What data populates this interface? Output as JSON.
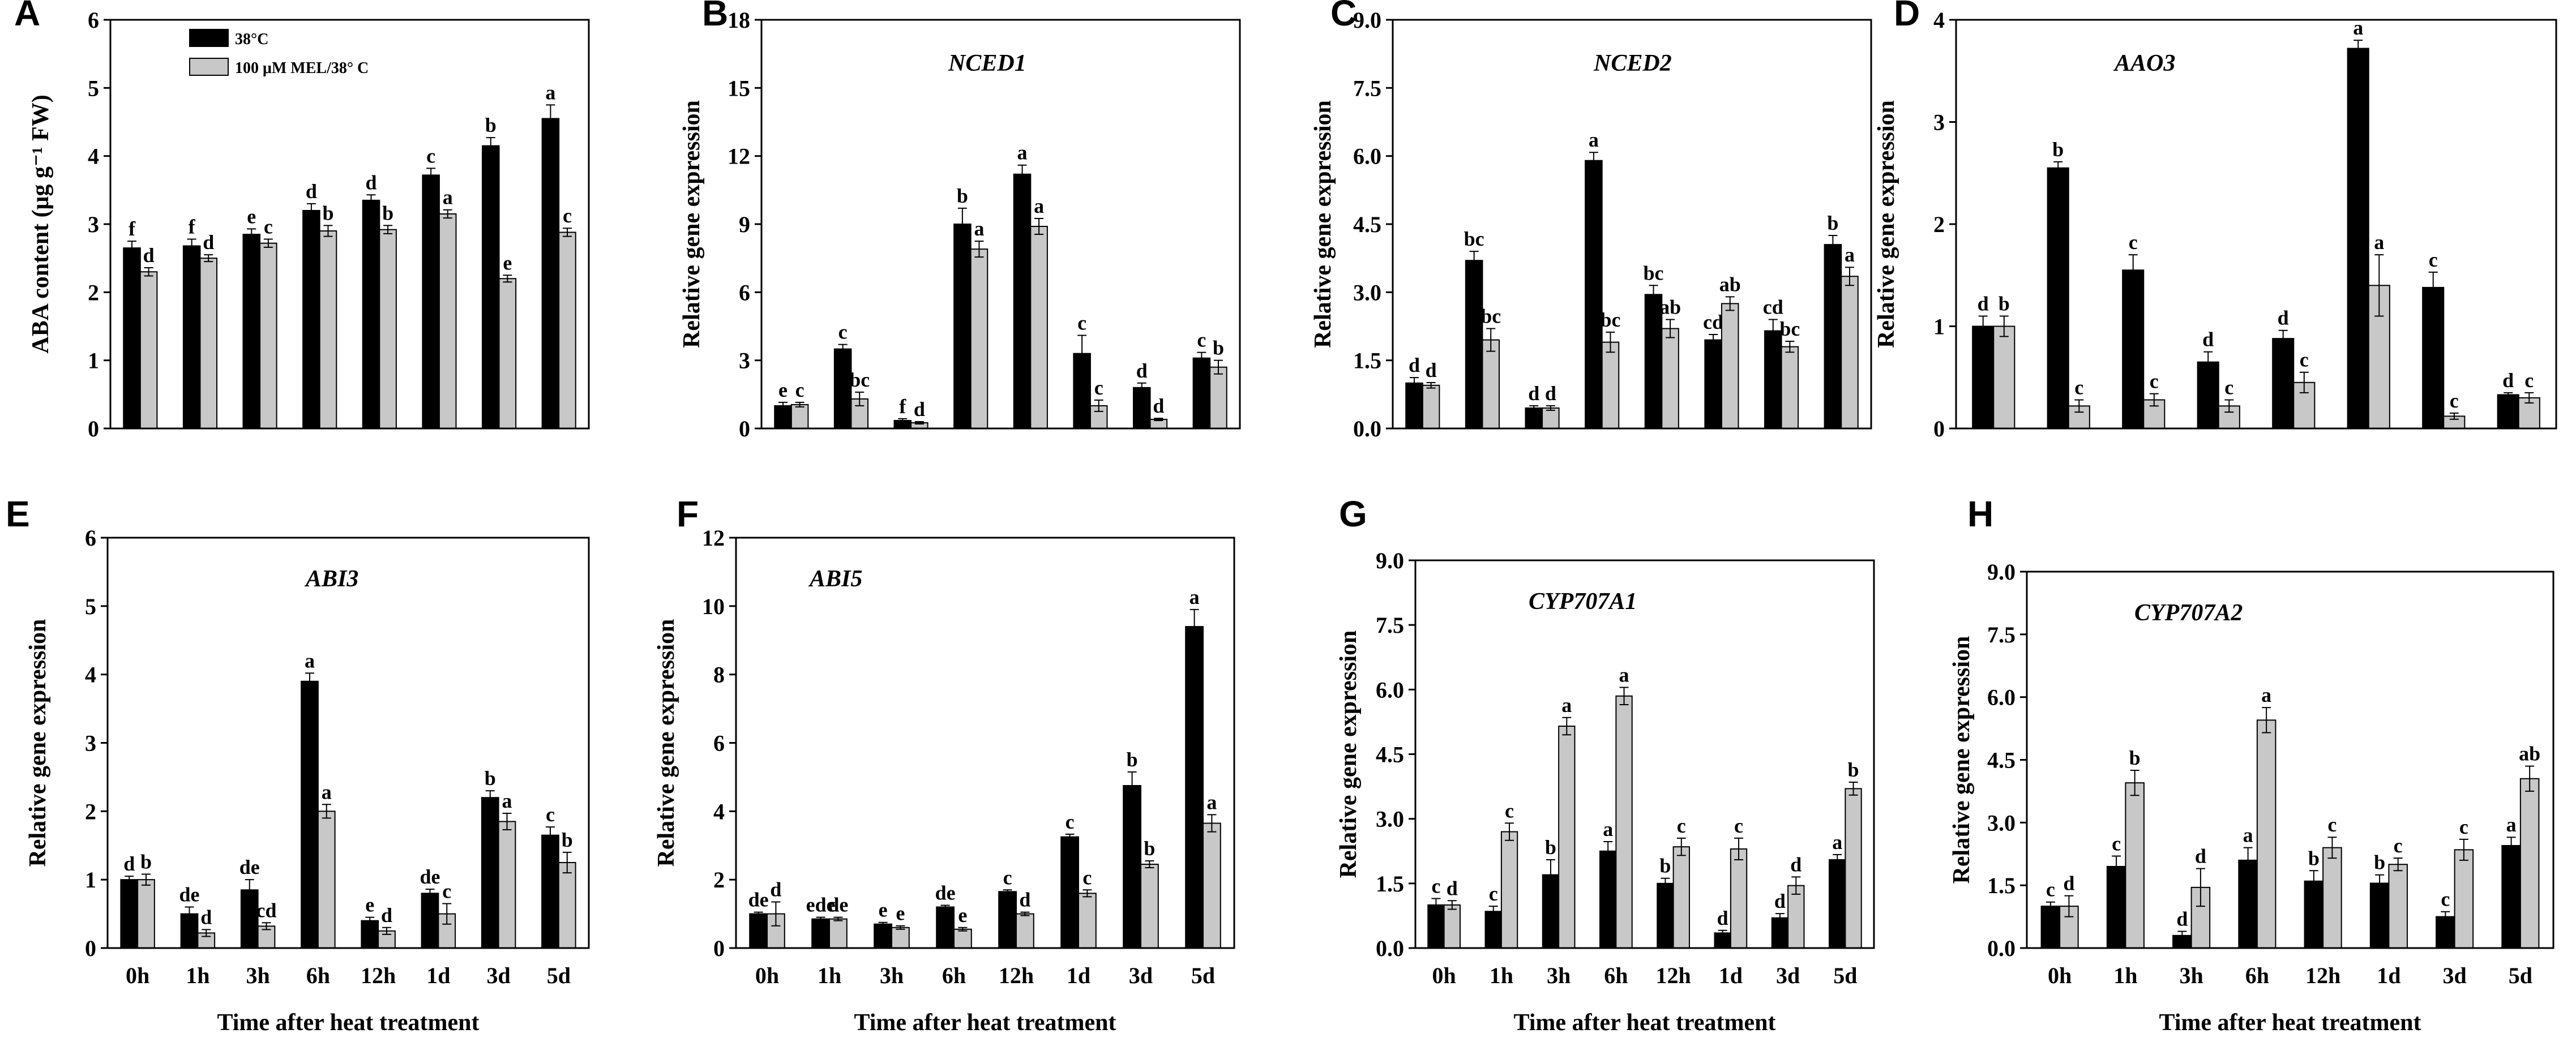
{
  "figure": {
    "legend": {
      "series1": "38°C",
      "series2": "100 μM MEL/38° C"
    },
    "colors": {
      "series1": "#000000",
      "series2": "#c8c8c8"
    }
  },
  "chart_data": [
    {
      "type": "bar",
      "panel": "A",
      "gene": "",
      "ylabel": "ABA content (μg g⁻¹ FW)",
      "xlabel": "",
      "categories": [
        "0h",
        "1h",
        "3h",
        "6h",
        "12h",
        "1d",
        "3d",
        "5d"
      ],
      "ylim": [
        0,
        6
      ],
      "yticks": [
        "0",
        "1",
        "2",
        "3",
        "4",
        "5",
        "6"
      ],
      "show_xticks": false,
      "show_legend": true,
      "series": [
        {
          "name": "38°C",
          "values": [
            2.65,
            2.68,
            2.85,
            3.2,
            3.35,
            3.72,
            4.15,
            4.55
          ],
          "errors": [
            0.1,
            0.1,
            0.08,
            0.1,
            0.08,
            0.1,
            0.12,
            0.2
          ],
          "labels": [
            "f",
            "f",
            "e",
            "d",
            "d",
            "c",
            "b",
            "a"
          ]
        },
        {
          "name": "100 μM MEL/38° C",
          "values": [
            2.3,
            2.5,
            2.72,
            2.9,
            2.92,
            3.15,
            2.2,
            2.88
          ],
          "errors": [
            0.06,
            0.05,
            0.06,
            0.08,
            0.06,
            0.06,
            0.05,
            0.06
          ],
          "labels": [
            "d",
            "d",
            "c",
            "b",
            "b",
            "a",
            "e",
            "c"
          ]
        }
      ]
    },
    {
      "type": "bar",
      "panel": "B",
      "gene": "NCED1",
      "ylabel": "Relative gene expression",
      "xlabel": "",
      "categories": [
        "0h",
        "1h",
        "3h",
        "6h",
        "12h",
        "1d",
        "3d",
        "5d"
      ],
      "ylim": [
        0,
        18
      ],
      "yticks": [
        "0",
        "3",
        "6",
        "9",
        "12",
        "15",
        "18"
      ],
      "show_xticks": false,
      "show_legend": false,
      "series": [
        {
          "name": "38°C",
          "values": [
            1.0,
            3.5,
            0.35,
            9.0,
            11.2,
            3.3,
            1.8,
            3.1
          ],
          "errors": [
            0.15,
            0.2,
            0.08,
            0.7,
            0.4,
            0.8,
            0.2,
            0.25
          ],
          "labels": [
            "e",
            "c",
            "f",
            "b",
            "a",
            "c",
            "d",
            "c"
          ]
        },
        {
          "name": "100 μM MEL/38° C",
          "values": [
            1.05,
            1.3,
            0.25,
            7.9,
            8.9,
            1.0,
            0.4,
            2.7
          ],
          "errors": [
            0.1,
            0.3,
            0.05,
            0.35,
            0.35,
            0.25,
            0.05,
            0.3
          ],
          "labels": [
            "c",
            "bc",
            "d",
            "a",
            "a",
            "c",
            "d",
            "b"
          ]
        }
      ]
    },
    {
      "type": "bar",
      "panel": "C",
      "gene": "NCED2",
      "ylabel": "Relative gene expression",
      "xlabel": "",
      "categories": [
        "0h",
        "1h",
        "3h",
        "6h",
        "12h",
        "1d",
        "3d",
        "5d"
      ],
      "ylim": [
        0,
        9
      ],
      "yticks": [
        "0.0",
        "1.5",
        "3.0",
        "4.5",
        "6.0",
        "7.5",
        "9.0"
      ],
      "show_xticks": false,
      "show_legend": false,
      "series": [
        {
          "name": "38°C",
          "values": [
            1.0,
            3.7,
            0.45,
            5.9,
            2.95,
            1.95,
            2.15,
            4.05
          ],
          "errors": [
            0.12,
            0.2,
            0.05,
            0.18,
            0.2,
            0.12,
            0.25,
            0.2
          ],
          "labels": [
            "d",
            "bc",
            "d",
            "a",
            "bc",
            "cd",
            "cd",
            "b"
          ]
        },
        {
          "name": "100 μM MEL/38° C",
          "values": [
            0.95,
            1.95,
            0.45,
            1.9,
            2.2,
            2.75,
            1.8,
            3.35
          ],
          "errors": [
            0.06,
            0.25,
            0.05,
            0.22,
            0.2,
            0.15,
            0.12,
            0.2
          ],
          "labels": [
            "d",
            "bc",
            "d",
            "bc",
            "ab",
            "ab",
            "bc",
            "a"
          ]
        }
      ]
    },
    {
      "type": "bar",
      "panel": "D",
      "gene": "AAO3",
      "ylabel": "Relative gene expression",
      "xlabel": "",
      "categories": [
        "0h",
        "1h",
        "3h",
        "6h",
        "12h",
        "1d",
        "3d",
        "5d"
      ],
      "ylim": [
        0,
        4
      ],
      "yticks": [
        "0",
        "1",
        "2",
        "3",
        "4"
      ],
      "show_xticks": false,
      "show_legend": false,
      "series": [
        {
          "name": "38°C",
          "values": [
            1.0,
            2.55,
            1.55,
            0.65,
            0.88,
            3.72,
            1.38,
            0.33
          ],
          "errors": [
            0.1,
            0.06,
            0.15,
            0.1,
            0.08,
            0.08,
            0.15,
            0.02
          ],
          "labels": [
            "d",
            "b",
            "c",
            "d",
            "d",
            "a",
            "c",
            "d"
          ]
        },
        {
          "name": "100 μM MEL/38° C",
          "values": [
            1.0,
            0.22,
            0.28,
            0.22,
            0.45,
            1.4,
            0.12,
            0.3
          ],
          "errors": [
            0.1,
            0.06,
            0.06,
            0.06,
            0.1,
            0.3,
            0.03,
            0.05
          ],
          "labels": [
            "b",
            "c",
            "c",
            "c",
            "c",
            "a",
            "c",
            "c"
          ]
        }
      ]
    },
    {
      "type": "bar",
      "panel": "E",
      "gene": "ABI3",
      "ylabel": "Relative gene expression",
      "xlabel": "Time after heat treatment",
      "categories": [
        "0h",
        "1h",
        "3h",
        "6h",
        "12h",
        "1d",
        "3d",
        "5d"
      ],
      "ylim": [
        0,
        6
      ],
      "yticks": [
        "0",
        "1",
        "2",
        "3",
        "4",
        "5",
        "6"
      ],
      "show_xticks": true,
      "show_legend": false,
      "series": [
        {
          "name": "38°C",
          "values": [
            1.0,
            0.5,
            0.85,
            3.9,
            0.4,
            0.8,
            2.2,
            1.65
          ],
          "errors": [
            0.05,
            0.1,
            0.15,
            0.12,
            0.05,
            0.06,
            0.1,
            0.12
          ],
          "labels": [
            "d",
            "de",
            "de",
            "a",
            "e",
            "de",
            "b",
            "c"
          ]
        },
        {
          "name": "100 μM MEL/38° C",
          "values": [
            1.0,
            0.22,
            0.32,
            2.0,
            0.25,
            0.5,
            1.85,
            1.25
          ],
          "errors": [
            0.08,
            0.05,
            0.05,
            0.1,
            0.05,
            0.15,
            0.12,
            0.15
          ],
          "labels": [
            "b",
            "d",
            "cd",
            "a",
            "d",
            "c",
            "a",
            "b"
          ]
        }
      ]
    },
    {
      "type": "bar",
      "panel": "F",
      "gene": "ABI5",
      "ylabel": "Relative gene expression",
      "xlabel": "Time after heat treatment",
      "categories": [
        "0h",
        "1h",
        "3h",
        "6h",
        "12h",
        "1d",
        "3d",
        "5d"
      ],
      "ylim": [
        0,
        12
      ],
      "yticks": [
        "0",
        "2",
        "4",
        "6",
        "8",
        "10",
        "12"
      ],
      "show_xticks": true,
      "show_legend": false,
      "series": [
        {
          "name": "38°C",
          "values": [
            1.0,
            0.85,
            0.7,
            1.2,
            1.65,
            3.25,
            4.75,
            9.4
          ],
          "errors": [
            0.05,
            0.05,
            0.05,
            0.05,
            0.05,
            0.08,
            0.4,
            0.5
          ],
          "labels": [
            "de",
            "ede",
            "e",
            "de",
            "c",
            "c",
            "b",
            "a"
          ]
        },
        {
          "name": "100 μM MEL/38° C",
          "values": [
            1.0,
            0.85,
            0.6,
            0.55,
            1.0,
            1.6,
            2.45,
            3.65
          ],
          "errors": [
            0.35,
            0.05,
            0.05,
            0.05,
            0.05,
            0.1,
            0.1,
            0.25
          ],
          "labels": [
            "d",
            "de",
            "e",
            "e",
            "d",
            "c",
            "b",
            "a"
          ]
        }
      ]
    },
    {
      "type": "bar",
      "panel": "G",
      "gene": "CYP707A1",
      "ylabel": "Relative gene expression",
      "xlabel": "Time after heat treatment",
      "categories": [
        "0h",
        "1h",
        "3h",
        "6h",
        "12h",
        "1d",
        "3d",
        "5d"
      ],
      "ylim": [
        0,
        9
      ],
      "yticks": [
        "0.0",
        "1.5",
        "3.0",
        "4.5",
        "6.0",
        "7.5",
        "9.0"
      ],
      "show_xticks": true,
      "show_legend": false,
      "series": [
        {
          "name": "38°C",
          "values": [
            1.0,
            0.85,
            1.7,
            2.25,
            1.5,
            0.35,
            0.7,
            2.05
          ],
          "errors": [
            0.15,
            0.12,
            0.35,
            0.22,
            0.12,
            0.06,
            0.1,
            0.12
          ],
          "labels": [
            "c",
            "c",
            "b",
            "a",
            "b",
            "d",
            "d",
            "a"
          ]
        },
        {
          "name": "100 μM MEL/38° C",
          "values": [
            1.0,
            2.7,
            5.15,
            5.85,
            2.35,
            2.3,
            1.45,
            3.7
          ],
          "errors": [
            0.1,
            0.2,
            0.2,
            0.2,
            0.2,
            0.25,
            0.2,
            0.15
          ],
          "labels": [
            "d",
            "c",
            "a",
            "a",
            "c",
            "c",
            "d",
            "b"
          ]
        }
      ]
    },
    {
      "type": "bar",
      "panel": "H",
      "gene": "CYP707A2",
      "ylabel": "Relative gene expression",
      "xlabel": "Time after heat treatment",
      "categories": [
        "0h",
        "1h",
        "3h",
        "6h",
        "12h",
        "1d",
        "3d",
        "5d"
      ],
      "ylim": [
        0,
        9
      ],
      "yticks": [
        "0.0",
        "1.5",
        "3.0",
        "4.5",
        "6.0",
        "7.5",
        "9.0"
      ],
      "show_xticks": true,
      "show_legend": false,
      "series": [
        {
          "name": "38°C",
          "values": [
            1.0,
            1.95,
            0.3,
            2.1,
            1.6,
            1.55,
            0.75,
            2.45
          ],
          "errors": [
            0.1,
            0.25,
            0.1,
            0.3,
            0.25,
            0.2,
            0.12,
            0.2
          ],
          "labels": [
            "c",
            "c",
            "d",
            "a",
            "b",
            "b",
            "c",
            "a"
          ]
        },
        {
          "name": "100 μM MEL/38° C",
          "values": [
            1.0,
            3.95,
            1.45,
            5.45,
            2.4,
            2.0,
            2.35,
            4.05
          ],
          "errors": [
            0.25,
            0.3,
            0.45,
            0.3,
            0.25,
            0.15,
            0.25,
            0.3
          ],
          "labels": [
            "d",
            "b",
            "d",
            "a",
            "c",
            "c",
            "c",
            "ab"
          ]
        }
      ]
    }
  ]
}
